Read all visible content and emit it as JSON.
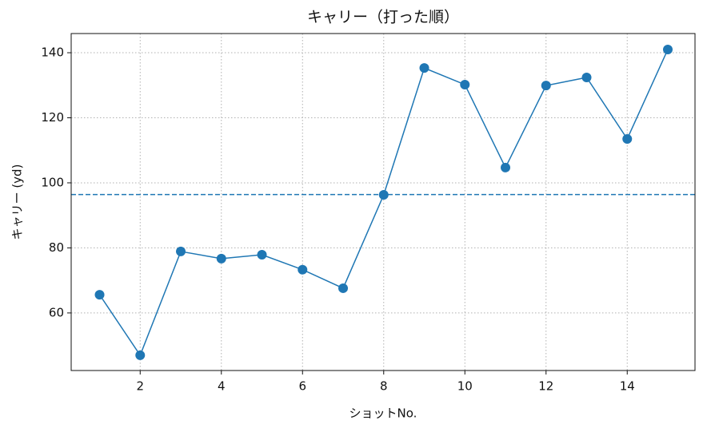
{
  "chart_data": {
    "type": "line",
    "title": "キャリー（打った順）",
    "xlabel": "ショットNo.",
    "ylabel": "キャリー (yd)",
    "x": [
      1,
      2,
      3,
      4,
      5,
      6,
      7,
      8,
      9,
      10,
      11,
      12,
      13,
      14,
      15
    ],
    "series": [
      {
        "name": "キャリー",
        "color": "#1f77b4",
        "values": [
          65.6,
          47.0,
          78.9,
          76.7,
          77.9,
          73.3,
          67.6,
          96.3,
          135.3,
          130.2,
          104.7,
          129.9,
          132.4,
          113.5,
          141.0
        ]
      }
    ],
    "hline": {
      "value": 96.4,
      "color": "#1f77b4",
      "style": "dashed"
    },
    "xlim": [
      0.3,
      15.67
    ],
    "xticks": [
      2,
      4,
      6,
      8,
      10,
      12,
      14
    ],
    "ylim": [
      42.3,
      145.9
    ],
    "yticks": [
      60,
      80,
      100,
      120,
      140
    ],
    "grid": true
  }
}
